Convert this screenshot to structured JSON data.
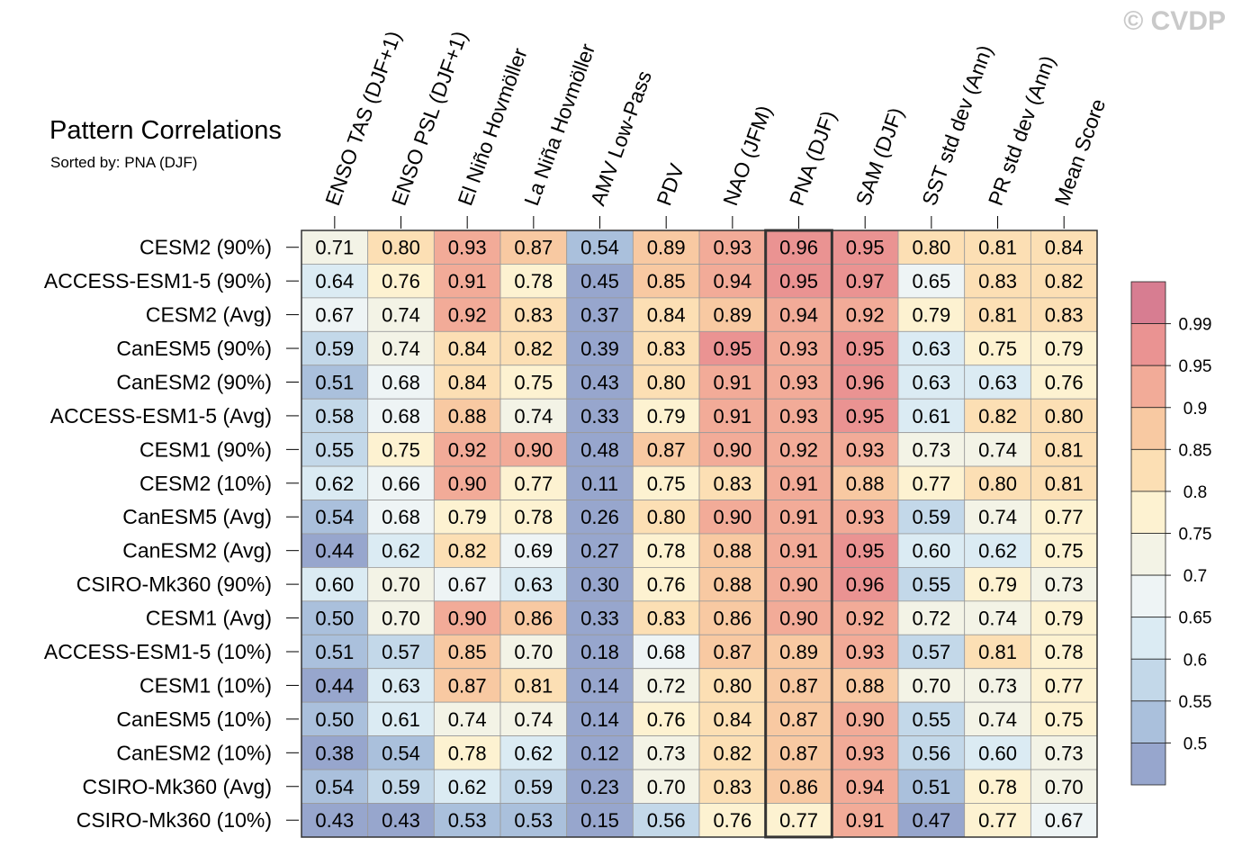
{
  "watermark": "© CVDP",
  "chart_data": {
    "type": "heatmap",
    "title": "Pattern Correlations",
    "subtitle": "Sorted by: PNA (DJF)",
    "highlight_column": "PNA (DJF)",
    "columns": [
      "ENSO TAS (DJF+1)",
      "ENSO PSL (DJF+1)",
      "El Niño Hovmöller",
      "La Niña Hovmöller",
      "AMV Low-Pass",
      "PDV",
      "NAO (JFM)",
      "PNA (DJF)",
      "SAM (DJF)",
      "SST std dev (Ann)",
      "PR std dev (Ann)",
      "Mean Score"
    ],
    "rows": [
      "CESM2 (90%)",
      "ACCESS-ESM1-5 (90%)",
      "CESM2 (Avg)",
      "CanESM5 (90%)",
      "CanESM2 (90%)",
      "ACCESS-ESM1-5 (Avg)",
      "CESM1 (90%)",
      "CESM2 (10%)",
      "CanESM5 (Avg)",
      "CanESM2 (Avg)",
      "CSIRO-Mk360 (90%)",
      "CESM1 (Avg)",
      "ACCESS-ESM1-5 (10%)",
      "CESM1 (10%)",
      "CanESM5 (10%)",
      "CanESM2 (10%)",
      "CSIRO-Mk360 (Avg)",
      "CSIRO-Mk360 (10%)"
    ],
    "values": [
      [
        0.71,
        0.8,
        0.93,
        0.87,
        0.54,
        0.89,
        0.93,
        0.96,
        0.95,
        0.8,
        0.81,
        0.84
      ],
      [
        0.64,
        0.76,
        0.91,
        0.78,
        0.45,
        0.85,
        0.94,
        0.95,
        0.97,
        0.65,
        0.83,
        0.82
      ],
      [
        0.67,
        0.74,
        0.92,
        0.83,
        0.37,
        0.84,
        0.89,
        0.94,
        0.92,
        0.79,
        0.81,
        0.83
      ],
      [
        0.59,
        0.74,
        0.84,
        0.82,
        0.39,
        0.83,
        0.95,
        0.93,
        0.95,
        0.63,
        0.75,
        0.79
      ],
      [
        0.51,
        0.68,
        0.84,
        0.75,
        0.43,
        0.8,
        0.91,
        0.93,
        0.96,
        0.63,
        0.63,
        0.76
      ],
      [
        0.58,
        0.68,
        0.88,
        0.74,
        0.33,
        0.79,
        0.91,
        0.93,
        0.95,
        0.61,
        0.82,
        0.8
      ],
      [
        0.55,
        0.75,
        0.92,
        0.9,
        0.48,
        0.87,
        0.9,
        0.92,
        0.93,
        0.73,
        0.74,
        0.81
      ],
      [
        0.62,
        0.66,
        0.9,
        0.77,
        0.11,
        0.75,
        0.83,
        0.91,
        0.88,
        0.77,
        0.8,
        0.81
      ],
      [
        0.54,
        0.68,
        0.79,
        0.78,
        0.26,
        0.8,
        0.9,
        0.91,
        0.93,
        0.59,
        0.74,
        0.77
      ],
      [
        0.44,
        0.62,
        0.82,
        0.69,
        0.27,
        0.78,
        0.88,
        0.91,
        0.95,
        0.6,
        0.62,
        0.75
      ],
      [
        0.6,
        0.7,
        0.67,
        0.63,
        0.3,
        0.76,
        0.88,
        0.9,
        0.96,
        0.55,
        0.79,
        0.73
      ],
      [
        0.5,
        0.7,
        0.9,
        0.86,
        0.33,
        0.83,
        0.86,
        0.9,
        0.92,
        0.72,
        0.74,
        0.79
      ],
      [
        0.51,
        0.57,
        0.85,
        0.7,
        0.18,
        0.68,
        0.87,
        0.89,
        0.93,
        0.57,
        0.81,
        0.78
      ],
      [
        0.44,
        0.63,
        0.87,
        0.81,
        0.14,
        0.72,
        0.8,
        0.87,
        0.88,
        0.7,
        0.73,
        0.77
      ],
      [
        0.5,
        0.61,
        0.74,
        0.74,
        0.14,
        0.76,
        0.84,
        0.87,
        0.9,
        0.55,
        0.74,
        0.75
      ],
      [
        0.38,
        0.54,
        0.78,
        0.62,
        0.12,
        0.73,
        0.82,
        0.87,
        0.93,
        0.56,
        0.6,
        0.73
      ],
      [
        0.54,
        0.59,
        0.62,
        0.59,
        0.23,
        0.7,
        0.83,
        0.86,
        0.94,
        0.51,
        0.78,
        0.7
      ],
      [
        0.43,
        0.43,
        0.53,
        0.53,
        0.15,
        0.56,
        0.76,
        0.77,
        0.91,
        0.47,
        0.77,
        0.67
      ]
    ],
    "colorbar": {
      "ticks": [
        "0.99",
        "0.95",
        "0.9",
        "0.85",
        "0.8",
        "0.75",
        "0.7",
        "0.65",
        "0.6",
        "0.55",
        "0.5"
      ],
      "levels": [
        0.5,
        0.55,
        0.6,
        0.65,
        0.7,
        0.75,
        0.8,
        0.85,
        0.9,
        0.95,
        0.99
      ],
      "colors": [
        "#97a6cd",
        "#aac0dc",
        "#c3d8e9",
        "#dbebf3",
        "#eef4f5",
        "#f3f3e6",
        "#fdf2d1",
        "#fcdfb4",
        "#f8c9a2",
        "#f2ab98",
        "#ea9392",
        "#d77d91"
      ]
    }
  }
}
